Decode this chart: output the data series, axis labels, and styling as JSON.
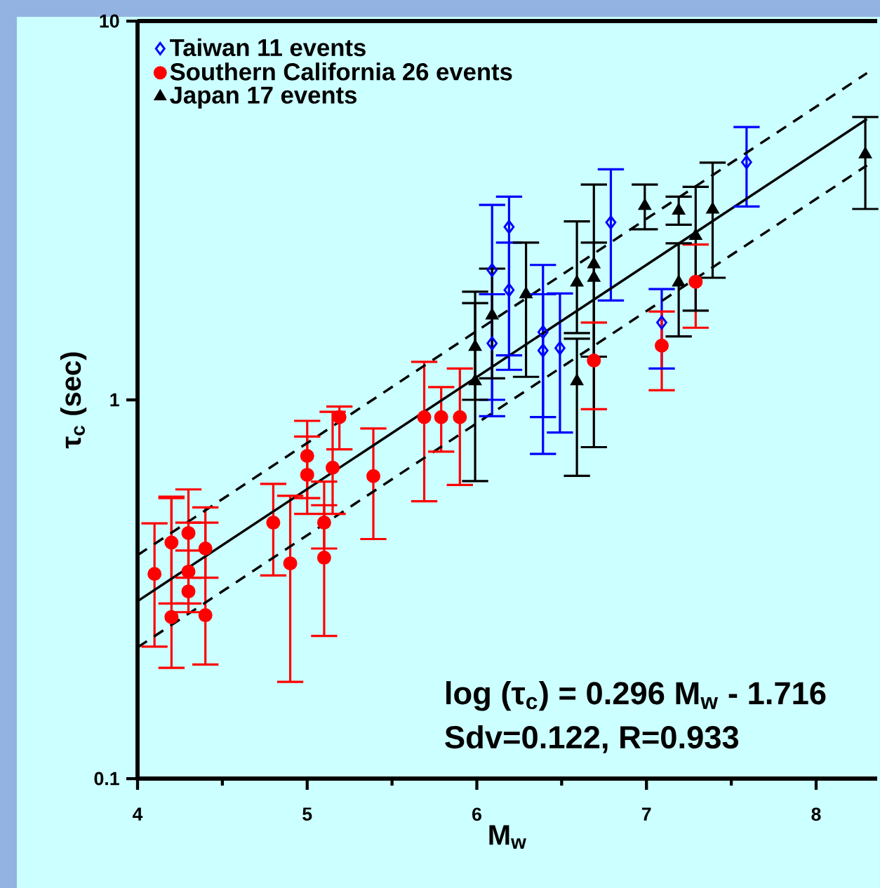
{
  "chart_data": {
    "type": "scatter",
    "xlabel": "M$_{w}$",
    "ylabel": "τ$_{c}$ (sec)",
    "log": "y",
    "xlim": [
      4,
      8.36
    ],
    "xticks": [
      4,
      5,
      6,
      7,
      8
    ],
    "ylim": [
      0.1,
      10
    ],
    "yticks": [
      0.1,
      1,
      10
    ],
    "legend": "top left",
    "annotations": [
      "log (τ$_{c}$) = 0.296 M$_{w}$ - 1.716",
      "Sdv=0.122, R=0.933"
    ],
    "series": [
      {
        "name": "Taiwan 11 events",
        "marker": "diamond",
        "color": "#0000ff",
        "x": [
          6.09,
          6.09,
          6.19,
          6.19,
          6.39,
          6.39,
          6.49,
          6.79,
          7.09,
          7.59
        ],
        "values": [
          2.2,
          1.41,
          2.86,
          1.95,
          1.51,
          1.35,
          1.37,
          2.94,
          1.6,
          4.24
        ],
        "errors": [
          [
            0.905,
            3.27
          ],
          [
            1.0,
            1.9
          ],
          [
            1.31,
            3.44
          ],
          [
            1.2,
            2.6
          ],
          [
            0.72,
            2.27
          ],
          [
            0.9,
            1.9
          ],
          [
            0.82,
            1.91
          ],
          [
            1.83,
            4.06
          ],
          [
            1.21,
            1.96
          ],
          [
            3.24,
            5.25
          ]
        ]
      },
      {
        "name": "Southern California 26 events",
        "marker": "circle",
        "color": "#ff0000",
        "x": [
          4.1,
          4.2,
          4.2,
          4.3,
          4.3,
          4.3,
          4.4,
          4.4,
          4.8,
          4.9,
          5.0,
          5.0,
          5.1,
          5.1,
          5.15,
          5.19,
          5.39,
          5.69,
          5.79,
          5.9,
          6.69,
          7.09,
          7.29
        ],
        "values": [
          0.347,
          0.42,
          0.267,
          0.445,
          0.352,
          0.312,
          0.405,
          0.27,
          0.474,
          0.37,
          0.711,
          0.634,
          0.474,
          0.383,
          0.662,
          0.9,
          0.629,
          0.9,
          0.9,
          0.9,
          1.27,
          1.39,
          2.05
        ],
        "errors": [
          [
            0.223,
            0.472
          ],
          [
            0.29,
            0.555
          ],
          [
            0.196,
            0.55
          ],
          [
            0.339,
            0.58
          ],
          [
            0.29,
            0.474
          ],
          [
            0.275,
            0.4
          ],
          [
            0.339,
            0.52
          ],
          [
            0.2,
            0.474
          ],
          [
            0.344,
            0.6
          ],
          [
            0.18,
            0.558
          ],
          [
            0.55,
            0.88
          ],
          [
            0.5,
            0.8
          ],
          [
            0.405,
            0.608
          ],
          [
            0.238,
            0.527
          ],
          [
            0.5,
            0.93
          ],
          [
            0.74,
            0.96
          ],
          [
            0.429,
            0.84
          ],
          [
            0.54,
            1.26
          ],
          [
            0.73,
            1.08
          ],
          [
            0.596,
            1.21
          ],
          [
            0.945,
            1.6
          ],
          [
            1.06,
            1.71
          ],
          [
            1.55,
            2.57
          ]
        ]
      },
      {
        "name": "Japan 17 events",
        "marker": "triangle",
        "color": "#000000",
        "x": [
          5.99,
          5.99,
          6.09,
          6.29,
          6.59,
          6.59,
          6.69,
          6.69,
          6.99,
          7.19,
          7.19,
          7.29,
          7.39,
          8.29
        ],
        "values": [
          1.12,
          1.38,
          1.67,
          1.9,
          2.04,
          1.12,
          2.28,
          2.1,
          3.25,
          3.16,
          2.04,
          2.71,
          3.18,
          4.45
        ],
        "errors": [
          [
            0.61,
            1.93
          ],
          [
            1.0,
            1.8
          ],
          [
            1.14,
            2.22
          ],
          [
            1.15,
            2.6
          ],
          [
            1.5,
            2.96
          ],
          [
            0.63,
            1.45
          ],
          [
            0.75,
            3.7
          ],
          [
            1.3,
            2.6
          ],
          [
            2.82,
            3.7
          ],
          [
            2.9,
            3.44
          ],
          [
            1.47,
            2.59
          ],
          [
            1.72,
            3.65
          ],
          [
            2.1,
            4.23
          ],
          [
            3.19,
            5.58
          ]
        ]
      },
      {
        "type": "line",
        "line_style": "solid",
        "color": "#000000",
        "x": [
          4,
          8.3
        ],
        "values": [
          0.294,
          5.51
        ]
      },
      {
        "type": "line",
        "line_style": "dashed",
        "color": "#000000",
        "x": [
          4,
          8.3
        ],
        "values": [
          0.389,
          7.29
        ]
      },
      {
        "type": "line",
        "line_style": "dashed",
        "color": "#000000",
        "x": [
          4,
          8.3
        ],
        "values": [
          0.222,
          4.16
        ]
      }
    ]
  }
}
